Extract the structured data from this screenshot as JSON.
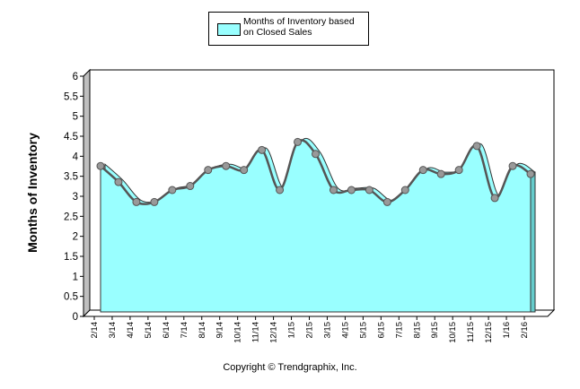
{
  "chart_data": {
    "type": "area",
    "title": "",
    "xlabel": "",
    "ylabel": "Months of Inventory",
    "ylim": [
      0,
      6
    ],
    "yticks": [
      "0",
      "0.5",
      "1",
      "1.5",
      "2",
      "2.5",
      "3",
      "3.5",
      "4",
      "4.5",
      "5",
      "5.5",
      "6"
    ],
    "categories": [
      "2/14",
      "3/14",
      "4/14",
      "5/14",
      "6/14",
      "7/14",
      "8/14",
      "9/14",
      "10/14",
      "11/14",
      "12/14",
      "1/15",
      "2/15",
      "3/15",
      "4/15",
      "5/15",
      "6/15",
      "7/15",
      "8/15",
      "9/15",
      "10/15",
      "11/15",
      "12/15",
      "1/16",
      "2/16"
    ],
    "series": [
      {
        "name": "Months of Inventory based on Closed Sales",
        "values": [
          3.6,
          3.2,
          2.7,
          2.7,
          3.0,
          3.1,
          3.5,
          3.6,
          3.5,
          4.0,
          3.0,
          4.2,
          3.9,
          3.0,
          3.0,
          3.0,
          2.7,
          3.0,
          3.5,
          3.4,
          3.5,
          4.1,
          2.8,
          3.6,
          3.4
        ]
      }
    ],
    "legend_position": "top-center",
    "grid": false
  },
  "legend": {
    "label": "Months of Inventory based on Closed Sales"
  },
  "footer": {
    "copyright": "Copyright © Trendgraphix, Inc."
  },
  "colors": {
    "fill": "#99ffff",
    "line": "#555555",
    "marker": "#999999"
  }
}
